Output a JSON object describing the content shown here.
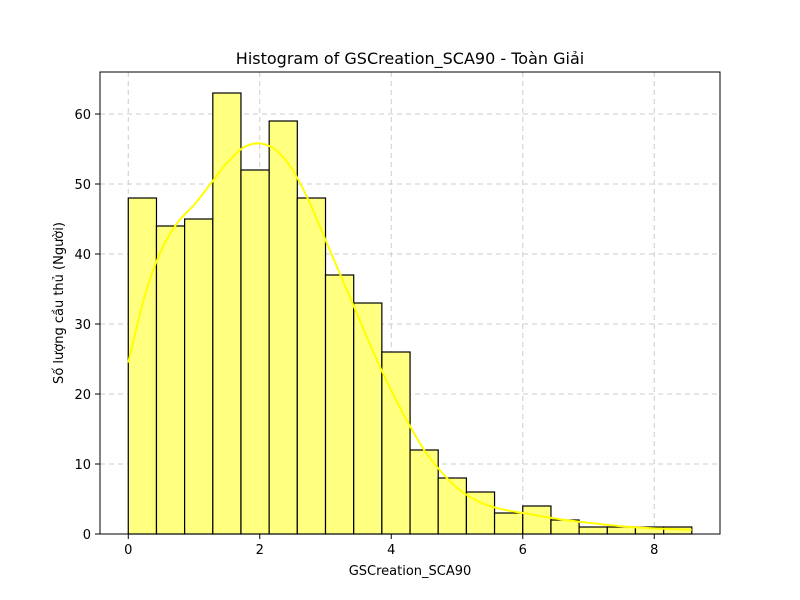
{
  "chart_data": {
    "type": "bar",
    "title": "Histogram of GSCreation_SCA90 - Toàn Giải",
    "xlabel": "GSCreation_SCA90",
    "ylabel": "Số lượng cầu thủ (Người)",
    "xlim": [
      -0.43,
      9.0
    ],
    "ylim": [
      0,
      66
    ],
    "xticks": [
      0,
      2,
      4,
      6,
      8
    ],
    "yticks": [
      0,
      10,
      20,
      30,
      40,
      50,
      60
    ],
    "grid": true,
    "bin_edges": [
      0,
      0.429,
      0.857,
      1.286,
      1.714,
      2.143,
      2.571,
      3.0,
      3.429,
      3.857,
      4.286,
      4.714,
      5.143,
      5.571,
      6.0,
      6.429,
      6.857,
      7.286,
      7.714,
      8.143,
      8.571
    ],
    "values": [
      48,
      44,
      45,
      63,
      52,
      59,
      48,
      37,
      33,
      26,
      12,
      8,
      6,
      3,
      4,
      2,
      1,
      1,
      1,
      1
    ],
    "kde": {
      "x": [
        0,
        0.25,
        0.5,
        0.75,
        1.0,
        1.25,
        1.5,
        1.75,
        2.0,
        2.25,
        2.5,
        2.75,
        3.0,
        3.25,
        3.5,
        3.75,
        4.0,
        4.25,
        4.5,
        4.75,
        5.0,
        5.25,
        5.5,
        5.75,
        6.0,
        6.5,
        7.0,
        7.5,
        8.0,
        8.57
      ],
      "y": [
        24.5,
        34,
        40.5,
        44.5,
        47,
        50,
        53,
        55.2,
        55.8,
        54.8,
        52,
        47.5,
        42,
        36.5,
        31,
        25.5,
        20.5,
        16,
        12,
        9,
        6.6,
        5,
        4,
        3.4,
        3,
        2.2,
        1.6,
        1.1,
        0.8,
        0.6
      ]
    },
    "colors": {
      "bar_fill": "#ffff80",
      "bar_edge": "#000000",
      "kde_line": "#ffff00",
      "grid": "#cccccc"
    }
  }
}
